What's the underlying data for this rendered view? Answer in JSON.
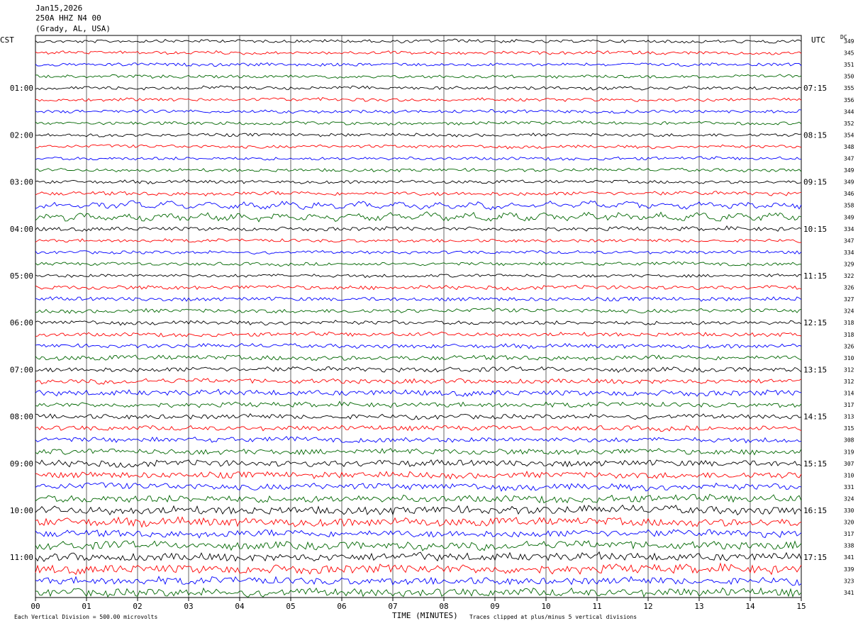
{
  "header": {
    "date": "Jan15,2026",
    "station": "250A HHZ N4 00",
    "location": "(Grady, AL, USA)"
  },
  "left_tz": "CST",
  "right_tz": "UTC",
  "dc_label": "DC",
  "footer": {
    "scale_note": "Each Vertical Division =  500.00 microvolts",
    "clip_note": "Traces clipped at plus/minus 5 vertical divisions"
  },
  "chart_data": {
    "type": "line",
    "title": "",
    "xlabel": "TIME (MINUTES)",
    "ylabel": "",
    "x_ticks": [
      "00",
      "01",
      "02",
      "03",
      "04",
      "05",
      "06",
      "07",
      "08",
      "09",
      "10",
      "11",
      "12",
      "13",
      "14",
      "15"
    ],
    "xlim": [
      0,
      15
    ],
    "grid": true,
    "trace_colors": [
      "#000000",
      "#ff0000",
      "#0000ff",
      "#006600"
    ],
    "left_labels": [
      "",
      "01:00",
      "02:00",
      "03:00",
      "04:00",
      "05:00",
      "06:00",
      "07:00",
      "08:00",
      "09:00",
      "10:00",
      "11:00"
    ],
    "right_labels": [
      "",
      "07:15",
      "08:15",
      "09:15",
      "10:15",
      "11:15",
      "12:15",
      "13:15",
      "14:15",
      "15:15",
      "16:15",
      "17:15"
    ],
    "dc_offsets": [
      349,
      345,
      351,
      350,
      355,
      356,
      344,
      352,
      354,
      348,
      347,
      349,
      349,
      346,
      358,
      349,
      334,
      347,
      334,
      329,
      322,
      326,
      327,
      324,
      318,
      318,
      326,
      310,
      312,
      312,
      314,
      317,
      313,
      315,
      308,
      319,
      307,
      310,
      331,
      324,
      330,
      320,
      317,
      338,
      341,
      339,
      323,
      341
    ],
    "trace_amplitude": [
      2,
      2,
      2,
      2,
      2,
      2,
      2,
      2,
      2,
      2,
      2,
      2,
      2,
      2.5,
      3,
      3.5,
      2.5,
      2,
      2,
      2,
      2,
      2.5,
      2.5,
      2.5,
      2.5,
      2.5,
      2.5,
      3,
      3,
      3,
      3.5,
      3,
      3,
      3,
      3,
      3.5,
      4,
      4,
      4,
      4.5,
      5,
      5,
      4.5,
      5,
      5,
      5.5,
      4.5,
      5
    ]
  }
}
